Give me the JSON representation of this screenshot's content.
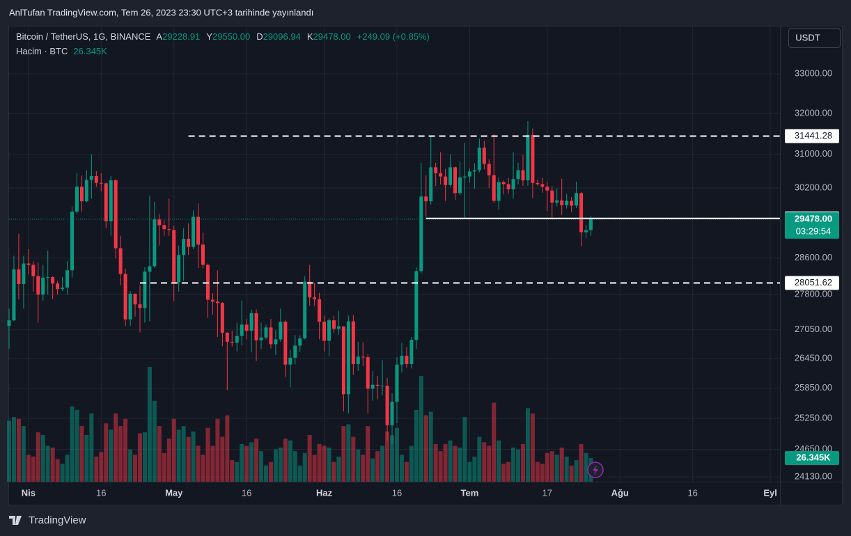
{
  "chart_data": {
    "type": "candlestick",
    "header": "AnlTufan TradingView.com, Tem 26, 2023 23:30 UTC+3 tarihinde yayınlandı",
    "title": "Bitcoin / TetherUS, 1G, BINANCE",
    "ohlc_legend": [
      {
        "label": "A",
        "value": "29228.91"
      },
      {
        "label": "Y",
        "value": "29550.00"
      },
      {
        "label": "D",
        "value": "29096.94"
      },
      {
        "label": "K",
        "value": "29478.00"
      }
    ],
    "change": "+249.09 (+0.85%)",
    "volume_legend": {
      "label": "Hacim · BTC",
      "value": "26.345K"
    },
    "currency": "USDT",
    "brand": "TradingView",
    "price_label": "29478.00",
    "countdown": "03:29:54",
    "up_color": "#089981",
    "down_color": "#f23645",
    "log_scale": true,
    "grid": true,
    "open": [
      27130,
      27250,
      28350,
      28030,
      28480,
      28450,
      28200,
      27800,
      28170,
      28180,
      28040,
      27920,
      27950,
      28330,
      29650,
      30230,
      29890,
      30390,
      30480,
      30320,
      30310,
      29430,
      30380,
      28820,
      28250,
      27270,
      27820,
      27590,
      27510,
      28300,
      28420,
      29470,
      29340,
      29250,
      29230,
      28070,
      28670,
      29030,
      28850,
      29530,
      28900,
      28450,
      27690,
      27650,
      27620,
      26990,
      26800,
      26780,
      26920,
      27160,
      27030,
      27400,
      26830,
      26890,
      27100,
      26750,
      26850,
      27220,
      26330,
      26470,
      26720,
      26870,
      28080,
      27740,
      27700,
      27220,
      26820,
      27250,
      27070,
      27120,
      25730,
      27230,
      26340,
      26490,
      26480,
      25840,
      25920,
      25900,
      25900,
      25120,
      25580,
      26330,
      26510,
      26340,
      26840,
      28310,
      30000,
      29890,
      30690,
      30550,
      30470,
      30270,
      30690,
      30080,
      30450,
      30470,
      30590,
      30620,
      31160,
      30770,
      30500,
      29900,
      30340,
      30290,
      30170,
      30410,
      30620,
      30380,
      31470,
      30320,
      30290,
      30230,
      30140,
      29860,
      29910,
      29800,
      29900,
      29790,
      30080,
      29180,
      29228.91
    ],
    "high": [
      27500,
      28650,
      29150,
      28650,
      28800,
      28530,
      28500,
      28450,
      28770,
      28200,
      28100,
      28180,
      28530,
      29770,
      30550,
      30490,
      30620,
      31000,
      30600,
      30550,
      30320,
      30480,
      30410,
      29100,
      28370,
      27880,
      27820,
      28000,
      28400,
      30020,
      29880,
      29600,
      29450,
      29950,
      29330,
      28880,
      29270,
      29380,
      29680,
      29840,
      29170,
      28480,
      27830,
      28330,
      27640,
      27000,
      27030,
      27200,
      27670,
      27280,
      27480,
      27480,
      27200,
      27160,
      27280,
      27050,
      27500,
      27250,
      26630,
      26940,
      26940,
      28200,
      28450,
      28050,
      27840,
      27350,
      27300,
      27350,
      27450,
      27130,
      27350,
      27360,
      26800,
      26790,
      26540,
      26200,
      26100,
      26420,
      26060,
      25750,
      26480,
      26780,
      26690,
      26900,
      28400,
      30800,
      30500,
      31430,
      30800,
      31050,
      30650,
      31000,
      30710,
      30830,
      31280,
      30660,
      30790,
      31380,
      31330,
      30880,
      31500,
      30450,
      30380,
      30440,
      31050,
      30800,
      30990,
      31810,
      31630,
      30400,
      30440,
      30340,
      30240,
      30190,
      30420,
      30060,
      29990,
      30350,
      30100,
      29350,
      29550
    ],
    "low": [
      26650,
      27230,
      27700,
      27500,
      28250,
      27860,
      27200,
      27670,
      27800,
      27700,
      27800,
      27880,
      27800,
      28170,
      29600,
      29650,
      29870,
      29950,
      30230,
      30120,
      29270,
      29100,
      28600,
      28000,
      27130,
      27130,
      27330,
      27000,
      27200,
      27230,
      28380,
      28880,
      29100,
      29100,
      27660,
      27870,
      28100,
      28670,
      28800,
      28380,
      28370,
      27300,
      27370,
      26900,
      26710,
      25810,
      26700,
      26600,
      26730,
      26850,
      26580,
      26400,
      26650,
      26850,
      26660,
      26530,
      26800,
      26080,
      25870,
      26330,
      26590,
      26850,
      27560,
      27560,
      26850,
      26600,
      26500,
      26990,
      26950,
      25390,
      25350,
      26120,
      26200,
      26300,
      25350,
      25600,
      25630,
      25710,
      24820,
      24750,
      25160,
      26170,
      26260,
      26250,
      26650,
      28260,
      29530,
      29810,
      30250,
      30280,
      29900,
      30230,
      29920,
      30040,
      29500,
      30330,
      30180,
      30570,
      30640,
      30200,
      29850,
      29700,
      30050,
      30070,
      29950,
      30280,
      30250,
      30250,
      29960,
      30250,
      30090,
      29660,
      29520,
      29770,
      29570,
      29720,
      29640,
      29730,
      28860,
      29040,
      29096.94
    ],
    "close": [
      27250,
      28350,
      28030,
      28480,
      28450,
      28200,
      27800,
      28170,
      28180,
      28040,
      27920,
      27950,
      28330,
      29650,
      30230,
      29890,
      30390,
      30480,
      30320,
      30310,
      29430,
      30380,
      28820,
      28250,
      27270,
      27820,
      27590,
      27510,
      28300,
      28420,
      29470,
      29340,
      29250,
      29230,
      28070,
      28670,
      29030,
      28850,
      29530,
      28900,
      28450,
      27690,
      27650,
      27620,
      26990,
      26800,
      26780,
      26920,
      27160,
      27030,
      27400,
      26830,
      26890,
      27100,
      26750,
      26850,
      27220,
      26330,
      26470,
      26720,
      26870,
      28080,
      27740,
      27700,
      27220,
      26820,
      27250,
      27070,
      27120,
      25730,
      27230,
      26340,
      26490,
      26480,
      25840,
      25920,
      25900,
      25900,
      25120,
      25580,
      26330,
      26510,
      26340,
      26840,
      28310,
      30000,
      29890,
      30690,
      30550,
      30470,
      30270,
      30690,
      30080,
      30450,
      30470,
      30590,
      30620,
      31160,
      30770,
      30500,
      29900,
      30340,
      30290,
      30170,
      30410,
      30620,
      30380,
      31470,
      30320,
      30290,
      30230,
      30140,
      29860,
      29910,
      29800,
      29900,
      29790,
      30080,
      29180,
      29228.91,
      29478
    ],
    "volume": [
      68000,
      72000,
      70000,
      62000,
      30000,
      28000,
      55000,
      52000,
      40000,
      38000,
      25000,
      20000,
      30000,
      84000,
      80000,
      62000,
      52000,
      76000,
      28000,
      33000,
      65000,
      58000,
      76000,
      62000,
      70000,
      36000,
      30000,
      54000,
      55000,
      128000,
      90000,
      62000,
      32000,
      48000,
      70000,
      58000,
      62000,
      50000,
      56000,
      40000,
      30000,
      60000,
      40000,
      70000,
      50000,
      74000,
      24000,
      22000,
      42000,
      40000,
      44000,
      48000,
      34000,
      18000,
      22000,
      36000,
      38000,
      48000,
      46000,
      34000,
      18000,
      32000,
      52000,
      30000,
      42000,
      40000,
      38000,
      22000,
      28000,
      62000,
      64000,
      50000,
      36000,
      30000,
      62000,
      26000,
      34000,
      40000,
      56000,
      52000,
      60000,
      30000,
      22000,
      40000,
      80000,
      118000,
      74000,
      78000,
      42000,
      34000,
      42000,
      46000,
      40000,
      38000,
      72000,
      22000,
      28000,
      50000,
      44000,
      40000,
      88000,
      46000,
      20000,
      22000,
      38000,
      36000,
      42000,
      82000,
      76000,
      22000,
      20000,
      32000,
      34000,
      30000,
      38000,
      28000,
      18000,
      24000,
      42000,
      32000,
      26345
    ],
    "xlim": [
      0,
      159
    ],
    "xticks": [
      {
        "value": 4,
        "label": "Nis"
      },
      {
        "value": 19,
        "label": "16"
      },
      {
        "value": 34,
        "label": "May"
      },
      {
        "value": 49,
        "label": "16"
      },
      {
        "value": 65,
        "label": "Haz"
      },
      {
        "value": 80,
        "label": "16"
      },
      {
        "value": 95,
        "label": "Tem"
      },
      {
        "value": 111,
        "label": "17"
      },
      {
        "value": 126,
        "label": "Ağu"
      },
      {
        "value": 141,
        "label": "16"
      },
      {
        "value": 157,
        "label": "Eyl"
      }
    ],
    "ylim": [
      24040,
      34200
    ],
    "yticks": [
      {
        "value": 33000,
        "label": "33000.00"
      },
      {
        "value": 32000,
        "label": "32000.00"
      },
      {
        "value": 31000,
        "label": "31000.00"
      },
      {
        "value": 30200,
        "label": "30200.00"
      },
      {
        "value": 28600,
        "label": "28600.00"
      },
      {
        "value": 27800,
        "label": "27800.00"
      },
      {
        "value": 27050,
        "label": "27050.00"
      },
      {
        "value": 26450,
        "label": "26450.00"
      },
      {
        "value": 25850,
        "label": "25850.00"
      },
      {
        "value": 25250,
        "label": "25250.00"
      },
      {
        "value": 24650,
        "label": "24650.00"
      },
      {
        "value": 24130,
        "label": "24130.00"
      }
    ],
    "levels": [
      {
        "value": 31441.28,
        "style": "dashed",
        "from": 37
      },
      {
        "value": 28051.62,
        "style": "dashed",
        "from": 27
      },
      {
        "value": 29495.28,
        "style": "solid",
        "from": 86
      }
    ]
  }
}
